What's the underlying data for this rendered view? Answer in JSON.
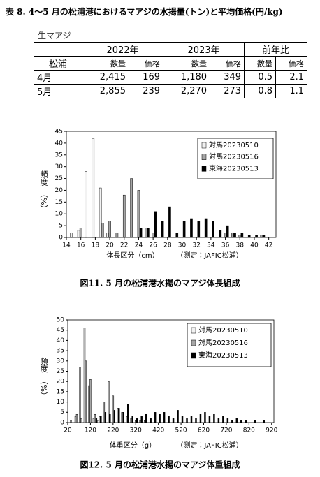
{
  "header": {
    "title": "表 8. 4～5 月の松浦港におけるマアジの水揚量(トン)と平均価格(円/kg)"
  },
  "table": {
    "label": "生マアジ",
    "region": "松浦",
    "groups": [
      "2022年",
      "2023年",
      "前年比"
    ],
    "subheaders": [
      "数量",
      "価格",
      "数量",
      "価格",
      "数量",
      "価格"
    ],
    "rows": [
      {
        "label": "4月",
        "cells": [
          "2,415",
          "169",
          "1,180",
          "349",
          "0.5",
          "2.1"
        ]
      },
      {
        "label": "5月",
        "cells": [
          "2,855",
          "239",
          "2,270",
          "273",
          "0.8",
          "1.1"
        ]
      }
    ]
  },
  "chart_data": [
    {
      "type": "bar",
      "x_label": "体長区分（cm）",
      "note": "（測定：JAFIC松浦）",
      "y_label": "頻度",
      "y_unit": "（%）",
      "caption": "図11. 5 月の松浦港水揚のマアジ体長組成",
      "legend": "upper right",
      "x": [
        15,
        16,
        17,
        18,
        19,
        20,
        21,
        22,
        23,
        24,
        25,
        26,
        27,
        28,
        29,
        30,
        31,
        32,
        33,
        34,
        35,
        36,
        37,
        38,
        39,
        40,
        41
      ],
      "series": [
        {
          "name": "対馬20230510",
          "color": "#f2f2f2",
          "values": [
            2,
            3,
            28,
            42,
            21,
            2,
            0,
            0,
            0,
            0,
            0,
            0,
            0,
            0,
            0,
            0,
            0,
            0,
            0,
            0,
            0,
            0,
            0,
            0,
            0,
            0,
            0
          ]
        },
        {
          "name": "対馬20230516",
          "color": "#a6a6a6",
          "values": [
            0,
            4,
            0,
            0,
            6,
            7,
            2,
            18,
            25,
            20,
            4,
            2,
            0,
            0,
            0,
            0,
            0,
            0,
            0,
            0,
            0,
            2,
            2,
            1,
            0,
            0,
            1
          ]
        },
        {
          "name": "東海20230513",
          "color": "#000000",
          "values": [
            0,
            0,
            0,
            0,
            0,
            0,
            0,
            0,
            0,
            4,
            4,
            11,
            7,
            13,
            2,
            7,
            8,
            7,
            8,
            7,
            3,
            5,
            2,
            2,
            1,
            1,
            1
          ]
        }
      ],
      "xlim": [
        14,
        43
      ],
      "xticks": [
        14,
        16,
        18,
        20,
        22,
        24,
        26,
        28,
        30,
        32,
        34,
        36,
        38,
        40,
        42
      ],
      "ylim": [
        0,
        45
      ],
      "yticks": [
        0,
        5,
        10,
        15,
        20,
        25,
        30,
        35,
        40,
        45
      ]
    },
    {
      "type": "bar",
      "x_label": "体重区分（g）",
      "note": "（測定：JAFIC松浦）",
      "y_label": "頻度",
      "y_unit": "（%）",
      "caption": "図12. 5 月の松浦港水揚のマアジ体重組成",
      "legend": "upper right",
      "x": [
        40,
        60,
        80,
        100,
        120,
        140,
        160,
        180,
        200,
        220,
        240,
        260,
        280,
        300,
        320,
        340,
        360,
        380,
        400,
        420,
        440,
        460,
        480,
        500,
        520,
        540,
        560,
        580,
        600,
        620,
        640,
        660,
        680,
        700,
        720,
        740,
        760,
        780,
        800,
        820,
        840,
        860,
        880
      ],
      "series": [
        {
          "name": "対馬20230510",
          "color": "#f2f2f2",
          "values": [
            1,
            3,
            27,
            46,
            18,
            2,
            1,
            0,
            0,
            0,
            0,
            0,
            0,
            0,
            0,
            0,
            0,
            0,
            0,
            0,
            0,
            0,
            0,
            0,
            0,
            0,
            0,
            0,
            0,
            0,
            0,
            0,
            0,
            0,
            0,
            0,
            0,
            0,
            0,
            0,
            0,
            0,
            0
          ]
        },
        {
          "name": "対馬20230516",
          "color": "#a6a6a6",
          "values": [
            0,
            4,
            2,
            30,
            21,
            4,
            3,
            10,
            20,
            13,
            7,
            5,
            3,
            2,
            1,
            1,
            1,
            0,
            0,
            0,
            0,
            0,
            0,
            0,
            0,
            0,
            0,
            0,
            0,
            0,
            0,
            0,
            0,
            0,
            0,
            0,
            0,
            0,
            0,
            0,
            0,
            0,
            0
          ]
        },
        {
          "name": "東海20230513",
          "color": "#000000",
          "values": [
            0,
            0,
            0,
            0,
            0,
            2,
            3,
            5,
            4,
            6,
            7,
            5,
            9,
            3,
            2,
            3,
            4,
            2,
            5,
            4,
            5,
            3,
            2,
            6,
            3,
            2,
            3,
            2,
            4,
            5,
            3,
            4,
            2,
            3,
            2,
            1,
            2,
            1,
            1,
            0,
            1,
            0,
            1
          ]
        }
      ],
      "xlim": [
        20,
        930
      ],
      "xticks": [
        20,
        120,
        220,
        320,
        420,
        520,
        620,
        720,
        820,
        920
      ],
      "ylim": [
        0,
        50
      ],
      "yticks": [
        0,
        5,
        10,
        15,
        20,
        25,
        30,
        35,
        40,
        45,
        50
      ]
    }
  ]
}
